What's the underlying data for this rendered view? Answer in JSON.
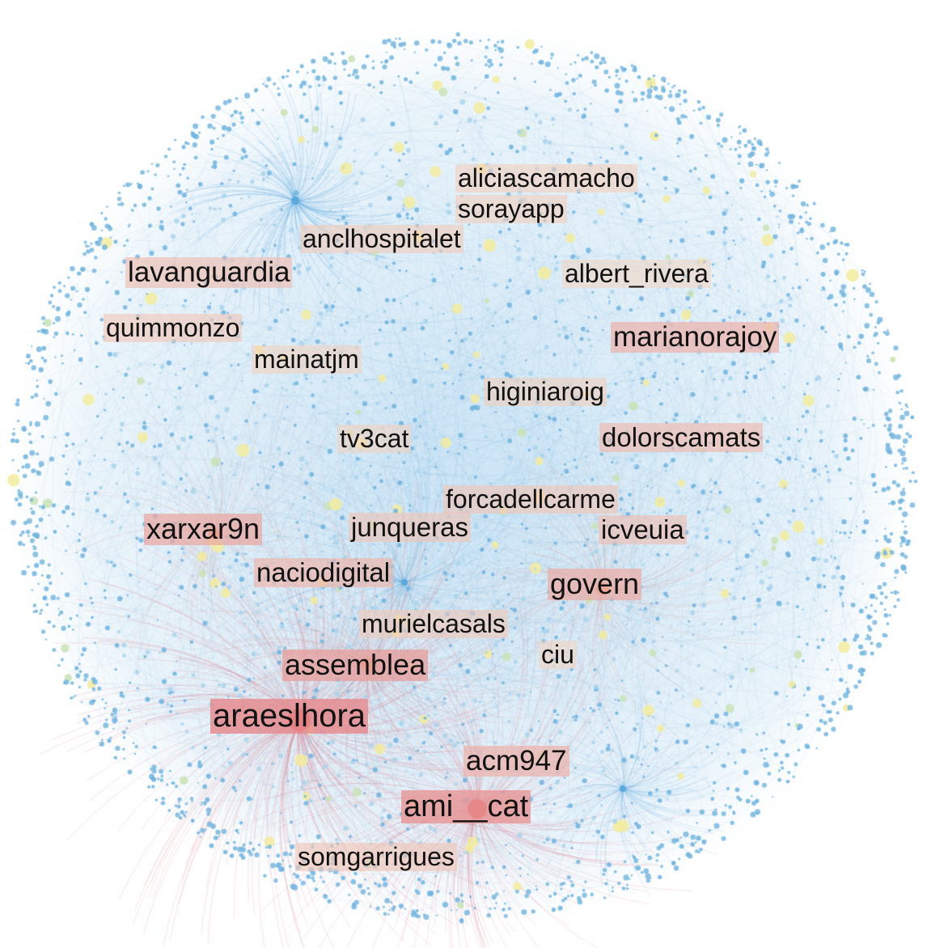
{
  "network": {
    "colors": {
      "background": "#ffffff",
      "edge": "#5aa9dc",
      "edge_hot": "#d2707a",
      "node": "#6fb3df",
      "node_light": "#a9d3ec",
      "node_yellow": "#f3ec9e",
      "node_green": "#c9e3b5",
      "hub_red": "#e0454d",
      "hub_orange": "#ee9a6a",
      "text": "#111111",
      "label_tint_pale": "#f4dcc7",
      "label_tint_mid": "#eeb9a6",
      "label_tint_strong": "#e27f86"
    },
    "labels": [
      {
        "text": "aliciascamacho",
        "influence": 0.15
      },
      {
        "text": "sorayapp",
        "influence": 0.15
      },
      {
        "text": "anclhospitalet",
        "influence": 0.18
      },
      {
        "text": "lavanguardia",
        "influence": 0.32
      },
      {
        "text": "albert_rivera",
        "influence": 0.08
      },
      {
        "text": "quimmonzo",
        "influence": 0.22
      },
      {
        "text": "marianorajoy",
        "influence": 0.45
      },
      {
        "text": "mainatjm",
        "influence": 0.12
      },
      {
        "text": "higiniaroig",
        "influence": 0.15
      },
      {
        "text": "tv3cat",
        "influence": 0.12
      },
      {
        "text": "dolorscamats",
        "influence": 0.35
      },
      {
        "text": "forcadellcarme",
        "influence": 0.25
      },
      {
        "text": "xarxar9n",
        "influence": 0.55
      },
      {
        "text": "junqueras",
        "influence": 0.25
      },
      {
        "text": "icveuia",
        "influence": 0.3
      },
      {
        "text": "naciodigital",
        "influence": 0.4
      },
      {
        "text": "govern",
        "influence": 0.5
      },
      {
        "text": "murielcasals",
        "influence": 0.2
      },
      {
        "text": "ciu",
        "influence": 0.1
      },
      {
        "text": "assemblea",
        "influence": 0.65
      },
      {
        "text": "araeslhora",
        "influence": 0.85
      },
      {
        "text": "acm947",
        "influence": 0.45
      },
      {
        "text": "ami__cat",
        "influence": 0.75
      },
      {
        "text": "somgarrigues",
        "influence": 0.25
      }
    ]
  }
}
